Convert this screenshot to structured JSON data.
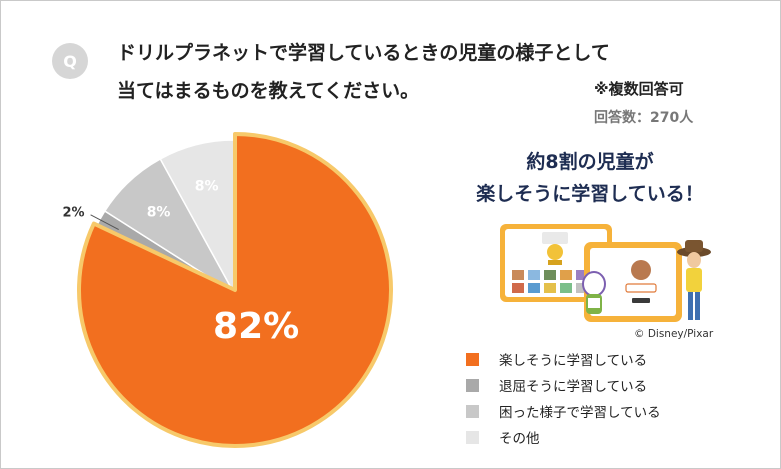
{
  "question": {
    "badge": "Q",
    "line1": "ドリルプラネットで学習しているときの児童の様子として",
    "line2": "当てはまるものを教えてください。"
  },
  "note_multiple": "※複数回答可",
  "respondents": "回答数：270人",
  "callout": {
    "line1": "約8割の児童が",
    "line2": "楽しそうに学習している！"
  },
  "copyright": "© Disney/Pixar",
  "colors": {
    "callout_text": "#1e2d52",
    "pie_border": "#f7c96a"
  },
  "chart_data": {
    "type": "pie",
    "title": "",
    "slices": [
      {
        "label": "楽しそうに学習している",
        "value": 82,
        "value_label": "82%",
        "color": "#f26f1f"
      },
      {
        "label": "退屈そうに学習している",
        "value": 2,
        "value_label": "2%",
        "color": "#a9a9a9"
      },
      {
        "label": "困った様子で学習している",
        "value": 8,
        "value_label": "8%",
        "color": "#c8c8c8"
      },
      {
        "label": "その他",
        "value": 8,
        "value_label": "8%",
        "color": "#e6e6e6"
      }
    ],
    "start": "12 o'clock",
    "direction": "clockwise",
    "legend_position": "bottom-right",
    "highlighted_slice": "楽しそうに学習している"
  }
}
